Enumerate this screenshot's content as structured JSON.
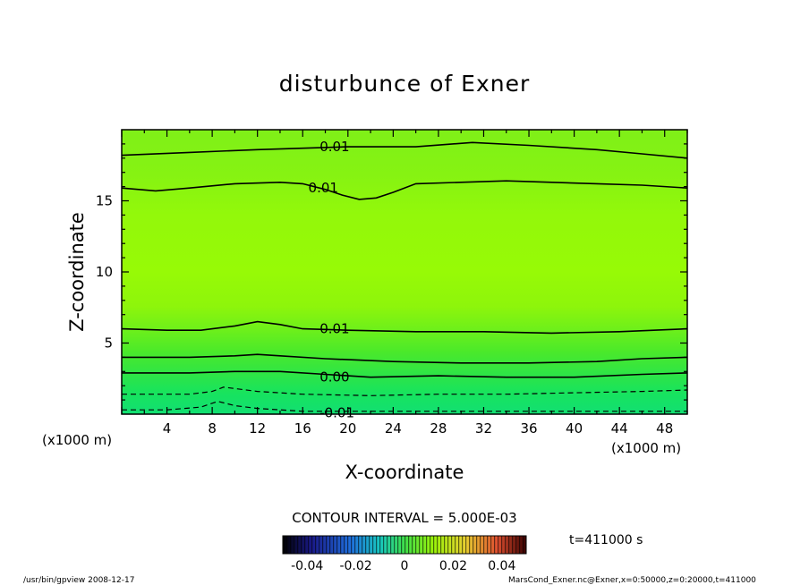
{
  "chart_data": {
    "type": "contour",
    "title": "disturbunce of Exner",
    "xlabel": "X-coordinate",
    "ylabel": "Z-coordinate",
    "x_unit_left": "(x1000 m)",
    "x_unit_right": "(x1000 m)",
    "xlim": [
      0,
      50
    ],
    "ylim": [
      0,
      20
    ],
    "x_ticks": [
      4,
      8,
      12,
      16,
      20,
      24,
      28,
      32,
      36,
      40,
      44,
      48
    ],
    "y_ticks": [
      5,
      10,
      15
    ],
    "contour_interval_text": "CONTOUR INTERVAL = 5.000E-03",
    "time_text": "t=411000 s",
    "colorbar_labels": [
      "-0.04",
      "-0.02",
      "0",
      "0.02",
      "0.04"
    ],
    "colorbar_range": [
      -0.05,
      0.05
    ],
    "contours": [
      {
        "label": "0.01",
        "label_at": [
          17.5,
          18.8
        ],
        "style": "solid",
        "points": [
          [
            0,
            18.2
          ],
          [
            6,
            18.4
          ],
          [
            12,
            18.6
          ],
          [
            16,
            18.7
          ],
          [
            20,
            18.8
          ],
          [
            26,
            18.8
          ],
          [
            31,
            19.1
          ],
          [
            36,
            18.9
          ],
          [
            42,
            18.6
          ],
          [
            46,
            18.3
          ],
          [
            50,
            18.0
          ]
        ]
      },
      {
        "label": "0.01",
        "label_at": [
          16.5,
          15.9
        ],
        "style": "solid",
        "points": [
          [
            0,
            15.9
          ],
          [
            3,
            15.7
          ],
          [
            6,
            15.9
          ],
          [
            10,
            16.2
          ],
          [
            14,
            16.3
          ],
          [
            16,
            16.2
          ],
          [
            18,
            15.8
          ],
          [
            19.5,
            15.4
          ],
          [
            21,
            15.1
          ],
          [
            22.5,
            15.2
          ],
          [
            24,
            15.6
          ],
          [
            26,
            16.2
          ],
          [
            30,
            16.3
          ],
          [
            34,
            16.4
          ],
          [
            38,
            16.3
          ],
          [
            42,
            16.2
          ],
          [
            46,
            16.1
          ],
          [
            50,
            15.9
          ]
        ]
      },
      {
        "label": "0.01",
        "label_at": [
          17.5,
          6.0
        ],
        "style": "solid",
        "points": [
          [
            0,
            6.0
          ],
          [
            4,
            5.9
          ],
          [
            7,
            5.9
          ],
          [
            10,
            6.2
          ],
          [
            12,
            6.5
          ],
          [
            14,
            6.3
          ],
          [
            16,
            6.0
          ],
          [
            20,
            5.9
          ],
          [
            26,
            5.8
          ],
          [
            32,
            5.8
          ],
          [
            38,
            5.7
          ],
          [
            44,
            5.8
          ],
          [
            50,
            6.0
          ]
        ]
      },
      {
        "label": "",
        "style": "solid",
        "points": [
          [
            0,
            4.0
          ],
          [
            6,
            4.0
          ],
          [
            10,
            4.1
          ],
          [
            12,
            4.2
          ],
          [
            14,
            4.1
          ],
          [
            18,
            3.9
          ],
          [
            24,
            3.7
          ],
          [
            30,
            3.6
          ],
          [
            36,
            3.6
          ],
          [
            42,
            3.7
          ],
          [
            46,
            3.9
          ],
          [
            50,
            4.0
          ]
        ]
      },
      {
        "label": "0.00",
        "label_at": [
          17.5,
          2.6
        ],
        "style": "solid",
        "points": [
          [
            0,
            2.9
          ],
          [
            6,
            2.9
          ],
          [
            10,
            3.0
          ],
          [
            14,
            3.0
          ],
          [
            18,
            2.8
          ],
          [
            22,
            2.6
          ],
          [
            28,
            2.7
          ],
          [
            34,
            2.6
          ],
          [
            40,
            2.6
          ],
          [
            46,
            2.8
          ],
          [
            50,
            2.9
          ]
        ]
      },
      {
        "label": "",
        "style": "dashed",
        "points": [
          [
            0,
            1.4
          ],
          [
            6,
            1.4
          ],
          [
            8,
            1.6
          ],
          [
            9,
            1.9
          ],
          [
            10,
            1.8
          ],
          [
            12,
            1.6
          ],
          [
            16,
            1.4
          ],
          [
            22,
            1.3
          ],
          [
            28,
            1.4
          ],
          [
            34,
            1.4
          ],
          [
            40,
            1.5
          ],
          [
            46,
            1.6
          ],
          [
            50,
            1.7
          ]
        ]
      },
      {
        "label": "-0.01",
        "label_at": [
          17.5,
          0.1
        ],
        "style": "dashed",
        "points": [
          [
            0,
            0.3
          ],
          [
            4,
            0.3
          ],
          [
            7,
            0.5
          ],
          [
            8.5,
            0.9
          ],
          [
            10,
            0.6
          ],
          [
            12,
            0.4
          ],
          [
            16,
            0.2
          ],
          [
            22,
            0.2
          ],
          [
            30,
            0.2
          ],
          [
            38,
            0.2
          ],
          [
            44,
            0.2
          ],
          [
            50,
            0.2
          ]
        ]
      }
    ]
  },
  "footer": {
    "left": "/usr/bin/gpview   2008-12-17",
    "right": "MarsCond_Exner.nc@Exner,x=0:50000,z=0:20000,t=411000"
  }
}
